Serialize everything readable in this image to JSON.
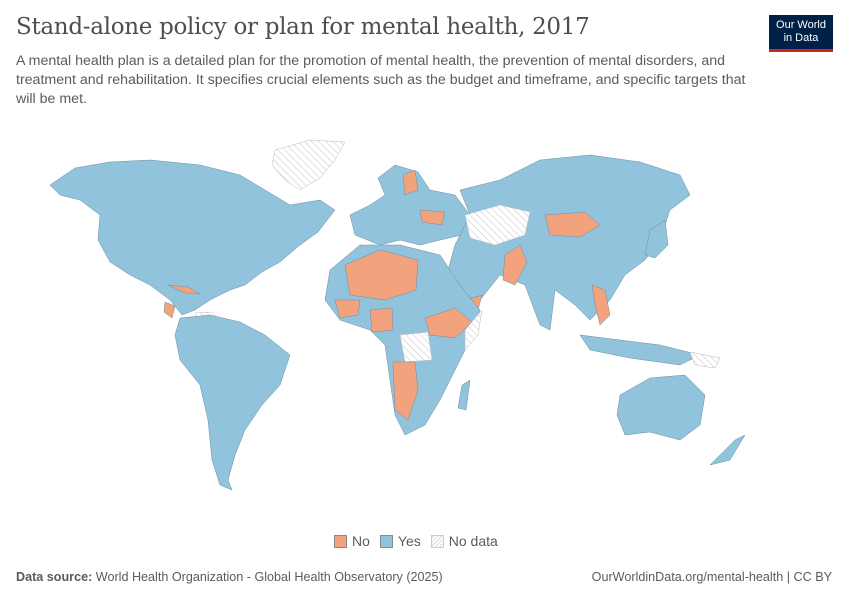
{
  "header": {
    "title": "Stand-alone policy or plan for mental health, 2017",
    "subtitle": "A mental health plan is a detailed plan for the promotion of mental health, the prevention of mental disorders, and treatment and rehabilitation. It specifies crucial elements such as the budget and timeframe, and specific targets that will be met.",
    "logo_line1": "Our World",
    "logo_line2": "in Data"
  },
  "chart_data": {
    "type": "choropleth-map",
    "title": "Stand-alone policy or plan for mental health, 2017",
    "legend_position": "bottom",
    "categories": [
      {
        "label": "No",
        "color": "#f2a37e"
      },
      {
        "label": "Yes",
        "color": "#92c3dc"
      },
      {
        "label": "No data",
        "color": "hatched"
      }
    ]
  },
  "footer": {
    "source_label": "Data source:",
    "source_text": "World Health Organization - Global Health Observatory (2025)",
    "url_license": "OurWorldinData.org/mental-health | CC BY"
  }
}
